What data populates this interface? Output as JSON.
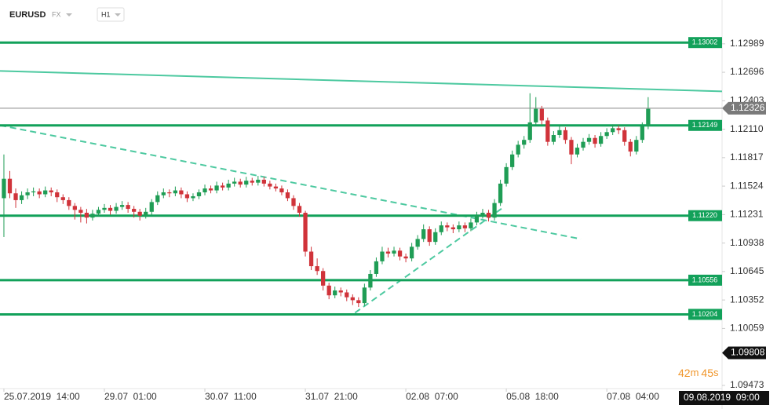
{
  "chart_data": {
    "type": "candlestick",
    "symbol": "EURUSD",
    "market": "FX",
    "timeframe": "H1",
    "up_color": "#1f9d55",
    "down_color": "#d0333a",
    "level_color": "#12a15a",
    "trend_color": "#4dc9a0",
    "ylim": [
      1.0944,
      1.1344
    ],
    "xlim": [
      -0.66,
      121.5
    ],
    "yticks": [
      1.12989,
      1.12696,
      1.12403,
      {
        "value": 1.1211,
        "label": "1.12110"
      },
      1.11817,
      1.11524,
      1.11231,
      1.10938,
      1.10645,
      1.10352,
      1.10059,
      1.09473
    ],
    "xticks": [
      {
        "value": 0,
        "label": "25.07.2019  14:00"
      },
      {
        "value": 17,
        "label": "29.07  01:00"
      },
      {
        "value": 34,
        "label": "30.07  11:00"
      },
      {
        "value": 51,
        "label": "31.07  21:00"
      },
      {
        "value": 68,
        "label": "02.08  07:00"
      },
      {
        "value": 85,
        "label": "05.08  18:00"
      },
      {
        "value": 102,
        "label": "07.08  04:00"
      }
    ],
    "open": [
      1.114,
      1.116,
      1.1145,
      1.1138,
      1.1143,
      1.1146,
      1.1147,
      1.1144,
      1.1148,
      1.1146,
      1.1141,
      1.1138,
      1.1132,
      1.1128,
      1.1125,
      1.112,
      1.1124,
      1.1128,
      1.113,
      1.1127,
      1.1131,
      1.1133,
      1.1129,
      1.1126,
      1.1122,
      1.1126,
      1.1136,
      1.1143,
      1.1146,
      1.1145,
      1.1148,
      1.1144,
      1.114,
      1.1142,
      1.1146,
      1.115,
      1.1148,
      1.1153,
      1.1151,
      1.1155,
      1.1157,
      1.1154,
      1.1158,
      1.1156,
      1.1159,
      1.1155,
      1.1152,
      1.115,
      1.1146,
      1.114,
      1.1132,
      1.1125,
      1.1085,
      1.107,
      1.1065,
      1.105,
      1.104,
      1.1045,
      1.1043,
      1.1038,
      1.1035,
      1.1032,
      1.1048,
      1.1062,
      1.1075,
      1.1085,
      1.1083,
      1.1086,
      1.108,
      1.1078,
      1.109,
      1.1098,
      1.1108,
      1.1095,
      1.1105,
      1.1112,
      1.111,
      1.1108,
      1.1112,
      1.1109,
      1.1115,
      1.1122,
      1.1125,
      1.112,
      1.1135,
      1.1155,
      1.1172,
      1.1185,
      1.1195,
      1.12,
      1.1218,
      1.1232,
      1.122,
      1.1198,
      1.1205,
      1.121,
      1.12,
      1.1185,
      1.1192,
      1.1198,
      1.1202,
      1.1196,
      1.1204,
      1.1208,
      1.1212,
      1.121,
      1.1198,
      1.1188,
      1.12,
      1.1214
    ],
    "high": [
      1.1185,
      1.1168,
      1.115,
      1.1147,
      1.115,
      1.1151,
      1.115,
      1.1152,
      1.1151,
      1.1149,
      1.1144,
      1.1141,
      1.1135,
      1.1131,
      1.1129,
      1.1128,
      1.1131,
      1.1134,
      1.1133,
      1.1135,
      1.1137,
      1.1136,
      1.1132,
      1.1129,
      1.113,
      1.1139,
      1.1147,
      1.115,
      1.1149,
      1.1152,
      1.1151,
      1.1147,
      1.1145,
      1.1149,
      1.1154,
      1.1153,
      1.1157,
      1.1156,
      1.1159,
      1.1161,
      1.116,
      1.1162,
      1.1161,
      1.1163,
      1.1162,
      1.1158,
      1.1155,
      1.1153,
      1.1149,
      1.1143,
      1.1135,
      1.1127,
      1.109,
      1.1078,
      1.1068,
      1.1053,
      1.1049,
      1.1048,
      1.1046,
      1.1041,
      1.1038,
      1.1052,
      1.1066,
      1.1079,
      1.109,
      1.1089,
      1.109,
      1.1089,
      1.1083,
      1.1094,
      1.1102,
      1.1113,
      1.1111,
      1.1109,
      1.1116,
      1.1115,
      1.1113,
      1.1116,
      1.1115,
      1.1119,
      1.1126,
      1.1129,
      1.1128,
      1.1139,
      1.1159,
      1.1176,
      1.1189,
      1.1199,
      1.1204,
      1.1248,
      1.1244,
      1.1235,
      1.1223,
      1.1209,
      1.1214,
      1.1213,
      1.1203,
      1.1196,
      1.1202,
      1.1206,
      1.1205,
      1.1208,
      1.1212,
      1.1216,
      1.1215,
      1.1213,
      1.1201,
      1.1204,
      1.1218,
      1.1244
    ],
    "low": [
      1.11,
      1.114,
      1.113,
      1.1134,
      1.1139,
      1.1142,
      1.114,
      1.1141,
      1.1142,
      1.1136,
      1.1134,
      1.1128,
      1.1118,
      1.1115,
      1.1114,
      1.1117,
      1.1121,
      1.1125,
      1.1123,
      1.1124,
      1.1128,
      1.1125,
      1.112,
      1.1117,
      1.1119,
      1.1123,
      1.1133,
      1.114,
      1.1141,
      1.1142,
      1.114,
      1.1136,
      1.1137,
      1.1139,
      1.1143,
      1.1145,
      1.1145,
      1.1148,
      1.1148,
      1.1152,
      1.1151,
      1.1151,
      1.1153,
      1.1153,
      1.1152,
      1.1149,
      1.1147,
      1.1143,
      1.1137,
      1.1128,
      1.1121,
      1.108,
      1.1066,
      1.1061,
      1.1045,
      1.1036,
      1.1037,
      1.1039,
      1.1034,
      1.103,
      1.1028,
      1.1029,
      1.1045,
      1.1059,
      1.1072,
      1.1079,
      1.108,
      1.1076,
      1.1074,
      1.1075,
      1.1087,
      1.1095,
      1.1091,
      1.1092,
      1.1102,
      1.1106,
      1.1104,
      1.1105,
      1.1105,
      1.1106,
      1.1112,
      1.1119,
      1.1116,
      1.1117,
      1.1132,
      1.1152,
      1.1169,
      1.1182,
      1.1191,
      1.1197,
      1.1215,
      1.1216,
      1.1194,
      1.1195,
      1.1202,
      1.1196,
      1.1175,
      1.1182,
      1.1189,
      1.1195,
      1.1192,
      1.1193,
      1.1201,
      1.1205,
      1.1206,
      1.1194,
      1.1183,
      1.1185,
      1.1197,
      1.1211
    ],
    "close": [
      1.116,
      1.1145,
      1.1138,
      1.1143,
      1.1146,
      1.1147,
      1.1144,
      1.1148,
      1.1146,
      1.1141,
      1.1138,
      1.1132,
      1.1128,
      1.1125,
      1.112,
      1.1124,
      1.1128,
      1.113,
      1.1127,
      1.1131,
      1.1133,
      1.1129,
      1.1126,
      1.1122,
      1.1126,
      1.1136,
      1.1143,
      1.1146,
      1.1145,
      1.1148,
      1.1144,
      1.114,
      1.1142,
      1.1146,
      1.115,
      1.1148,
      1.1153,
      1.1151,
      1.1155,
      1.1157,
      1.1154,
      1.1158,
      1.1156,
      1.1159,
      1.1155,
      1.1152,
      1.115,
      1.1146,
      1.114,
      1.1132,
      1.1125,
      1.1085,
      1.107,
      1.1065,
      1.105,
      1.104,
      1.1045,
      1.1043,
      1.1038,
      1.1035,
      1.1032,
      1.1048,
      1.1062,
      1.1075,
      1.1085,
      1.1083,
      1.1086,
      1.108,
      1.1078,
      1.109,
      1.1098,
      1.1108,
      1.1095,
      1.1105,
      1.1112,
      1.111,
      1.1108,
      1.1112,
      1.1109,
      1.1115,
      1.1122,
      1.1125,
      1.112,
      1.1135,
      1.1155,
      1.1172,
      1.1185,
      1.1195,
      1.12,
      1.1218,
      1.1232,
      1.122,
      1.1198,
      1.1205,
      1.121,
      1.12,
      1.1185,
      1.1192,
      1.1198,
      1.1202,
      1.1196,
      1.1204,
      1.1208,
      1.1212,
      1.121,
      1.1198,
      1.1188,
      1.12,
      1.1214,
      1.1232
    ],
    "levels": [
      1.13002,
      1.12149,
      {
        "value": 1.1122,
        "label": "1.11220"
      },
      1.10556,
      1.10204
    ],
    "trendlines": [
      {
        "x": [
          -0.66,
          121.5
        ],
        "y": [
          1.1271,
          1.125
        ],
        "dashed": false
      },
      {
        "x": [
          -0.66,
          97.6
        ],
        "y": [
          1.1215,
          1.1098
        ],
        "dashed": true
      },
      {
        "x": [
          59.4,
          84.6
        ],
        "y": [
          1.1022,
          1.1131
        ],
        "dashed": true
      }
    ],
    "current_price": 1.12326,
    "low_marker": 1.09808,
    "timer": {
      "minutes": "42",
      "minutes_unit": "m",
      "seconds": "45",
      "seconds_unit": "s"
    },
    "crosshair_time": "09.08.2019  09:00"
  }
}
